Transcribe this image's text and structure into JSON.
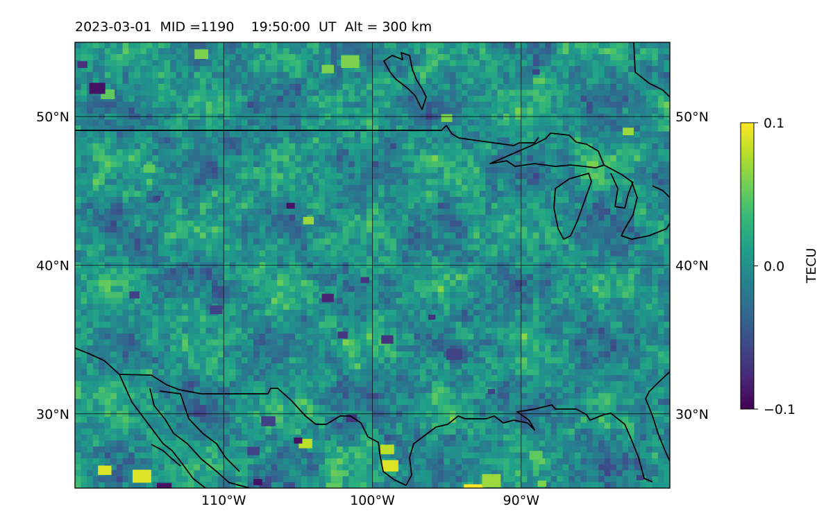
{
  "chart_data": {
    "type": "heatmap",
    "title": "2023-03-01  MID =1190    19:50:00  UT  Alt = 300 km",
    "projection": "equirectangular map",
    "lon_range": [
      -120,
      -80
    ],
    "lat_range": [
      25,
      55
    ],
    "grid": true,
    "x_ticks": [
      {
        "value": -110,
        "label": "110°W"
      },
      {
        "value": -100,
        "label": "100°W"
      },
      {
        "value": -90,
        "label": "90°W"
      }
    ],
    "y_ticks": [
      {
        "value": 30,
        "label": "30°N"
      },
      {
        "value": 40,
        "label": "40°N"
      },
      {
        "value": 50,
        "label": "50°N"
      }
    ],
    "colorbar": {
      "label": "TECU",
      "colormap": "viridis",
      "min": -0.1,
      "max": 0.1,
      "ticks": [
        {
          "value": 0.1,
          "label": "0.1"
        },
        {
          "value": 0.0,
          "label": "0.0"
        },
        {
          "value": -0.1,
          "label": "−0.1"
        }
      ],
      "colors": [
        "#440154",
        "#482878",
        "#3e4989",
        "#31688e",
        "#26828e",
        "#1f9e89",
        "#35b779",
        "#6ece58",
        "#b5de2b",
        "#fde725"
      ]
    },
    "field_description_values": {
      "background_mean": 0.0,
      "range": [
        -0.1,
        0.1
      ]
    },
    "hotspots": [
      {
        "lon": -118.0,
        "lat": 26.2,
        "value": 0.09
      },
      {
        "lon": -115.5,
        "lat": 25.8,
        "value": 0.09
      },
      {
        "lon": -98.8,
        "lat": 26.5,
        "value": 0.09
      },
      {
        "lon": -99.0,
        "lat": 27.6,
        "value": 0.08
      },
      {
        "lon": -93.2,
        "lat": 24.8,
        "value": 0.1
      },
      {
        "lon": -104.5,
        "lat": 28.0,
        "value": 0.08
      },
      {
        "lon": -111.5,
        "lat": 54.2,
        "value": 0.06
      },
      {
        "lon": -88.6,
        "lat": 25.3,
        "value": 0.06
      },
      {
        "lon": -89.0,
        "lat": 27.2,
        "value": 0.05
      },
      {
        "lon": -92.0,
        "lat": 25.5,
        "value": 0.07
      },
      {
        "lon": -115.0,
        "lat": 46.5,
        "value": 0.05
      },
      {
        "lon": -104.3,
        "lat": 43.0,
        "value": 0.07
      },
      {
        "lon": -82.8,
        "lat": 49.0,
        "value": 0.07
      },
      {
        "lon": -95.0,
        "lat": 49.9,
        "value": 0.06
      },
      {
        "lon": -101.5,
        "lat": 53.7,
        "value": 0.06
      },
      {
        "lon": -117.8,
        "lat": 51.5,
        "value": 0.05
      },
      {
        "lon": -103.0,
        "lat": 53.2,
        "value": 0.06
      },
      {
        "lon": -102.6,
        "lat": 25.0,
        "value": 0.05
      }
    ],
    "coldspots": [
      {
        "lon": -118.5,
        "lat": 51.9,
        "value": -0.09
      },
      {
        "lon": -119.5,
        "lat": 53.5,
        "value": -0.07
      },
      {
        "lon": -105.5,
        "lat": 44.0,
        "value": -0.09
      },
      {
        "lon": -105.0,
        "lat": 28.2,
        "value": -0.09
      },
      {
        "lon": -107.0,
        "lat": 29.5,
        "value": -0.06
      },
      {
        "lon": -107.7,
        "lat": 25.4,
        "value": -0.09
      },
      {
        "lon": -114.0,
        "lat": 25.0,
        "value": -0.09
      },
      {
        "lon": -103.0,
        "lat": 37.8,
        "value": -0.08
      },
      {
        "lon": -102.0,
        "lat": 35.3,
        "value": -0.07
      },
      {
        "lon": -99.0,
        "lat": 35.0,
        "value": -0.07
      },
      {
        "lon": -100.5,
        "lat": 39.0,
        "value": -0.07
      },
      {
        "lon": -101.4,
        "lat": 29.7,
        "value": -0.07
      },
      {
        "lon": -116.0,
        "lat": 38.0,
        "value": -0.06
      },
      {
        "lon": -114.5,
        "lat": 44.5,
        "value": -0.06
      },
      {
        "lon": -110.5,
        "lat": 37.0,
        "value": -0.06
      },
      {
        "lon": -96.0,
        "lat": 36.5,
        "value": -0.07
      },
      {
        "lon": -89.0,
        "lat": 53.0,
        "value": -0.06
      },
      {
        "lon": -92.0,
        "lat": 31.5,
        "value": -0.06
      },
      {
        "lon": -94.5,
        "lat": 34.0,
        "value": -0.06
      },
      {
        "lon": -82.0,
        "lat": 25.7,
        "value": -0.06
      },
      {
        "lon": -108.0,
        "lat": 27.5,
        "value": -0.06
      }
    ]
  }
}
